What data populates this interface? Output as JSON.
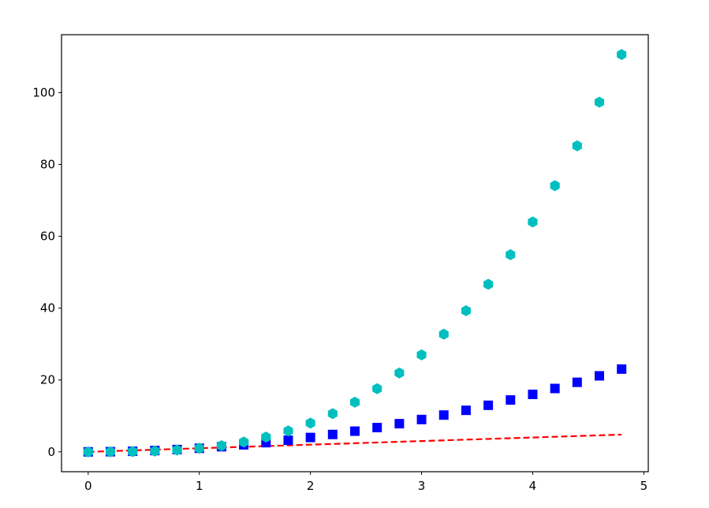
{
  "chart_data": {
    "type": "line",
    "x": [
      0,
      0.2,
      0.4,
      0.6,
      0.8,
      1,
      1.2,
      1.4,
      1.6,
      1.8,
      2,
      2.2,
      2.4,
      2.6,
      2.8,
      3,
      3.2,
      3.4,
      3.6,
      3.8,
      4,
      4.2,
      4.4,
      4.6,
      4.8
    ],
    "series": [
      {
        "color": "#ff0000",
        "linestyle": "dashed",
        "marker": "none",
        "values": [
          0,
          0.2,
          0.4,
          0.6,
          0.8,
          1,
          1.2,
          1.4,
          1.6,
          1.8,
          2,
          2.2,
          2.4,
          2.6,
          2.8,
          3,
          3.2,
          3.4,
          3.6,
          3.8,
          4,
          4.2,
          4.4,
          4.6,
          4.8
        ]
      },
      {
        "color": "#0000ff",
        "linestyle": "none",
        "marker": "square",
        "values": [
          0,
          0.04,
          0.16,
          0.36,
          0.64,
          1,
          1.44,
          1.96,
          2.56,
          3.24,
          4,
          4.84,
          5.76,
          6.76,
          7.84,
          9,
          10.24,
          11.56,
          12.96,
          14.44,
          16,
          17.64,
          19.36,
          21.16,
          23.04
        ]
      },
      {
        "color": "#00bfbf",
        "linestyle": "none",
        "marker": "hexagon",
        "values": [
          0,
          0.008,
          0.064,
          0.216,
          0.512,
          1,
          1.728,
          2.744,
          4.096,
          5.832,
          8,
          10.648,
          13.824,
          17.576,
          21.952,
          27,
          32.768,
          39.304,
          46.656,
          54.872,
          64,
          74.088,
          85.184,
          97.336,
          110.592
        ]
      }
    ],
    "xlim": [
      -0.24,
      5.04
    ],
    "xticks": [
      0,
      1,
      2,
      3,
      4,
      5
    ],
    "ylim": [
      -5.53,
      116.12
    ],
    "yticks": [
      0,
      20,
      40,
      60,
      80,
      100
    ],
    "grid": false
  }
}
